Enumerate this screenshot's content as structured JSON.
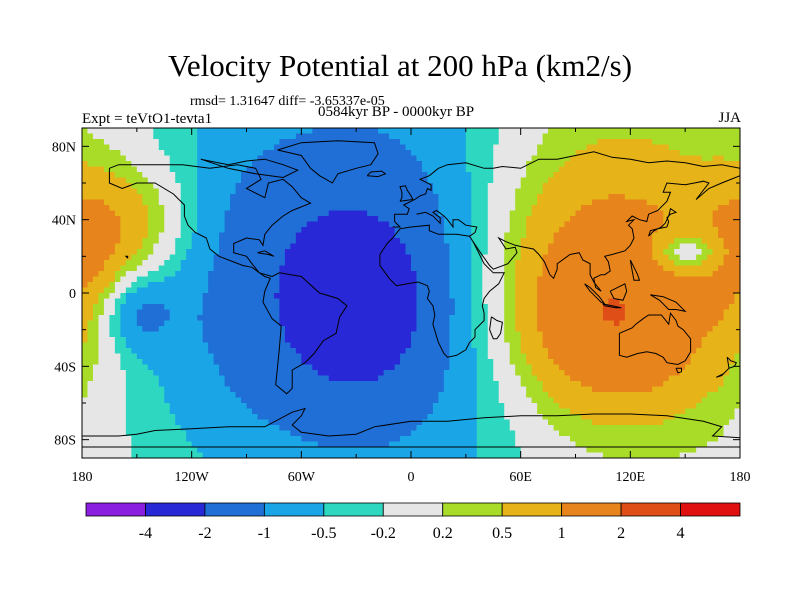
{
  "title": "Velocity Potential at 200 hPa (km2/s)",
  "stats": "rmsd= 1.31647 diff= -3.65337e-05",
  "experiment": "Expt = teVtO1-tevta1",
  "period": "0584kyr BP - 0000kyr BP",
  "season": "JJA",
  "lat_labels": [
    "80N",
    "40N",
    "0",
    "40S",
    "80S"
  ],
  "lat_values": [
    80,
    40,
    0,
    -40,
    -80
  ],
  "lon_labels": [
    "180",
    "120W",
    "60W",
    "0",
    "60E",
    "120E",
    "180"
  ],
  "lon_values": [
    -180,
    -120,
    -60,
    0,
    60,
    120,
    180
  ],
  "colorbar": {
    "labels": [
      "-4",
      "-2",
      "-1",
      "-0.5",
      "-0.2",
      "0.2",
      "0.5",
      "1",
      "2",
      "4"
    ],
    "colors": [
      "#8a1fe0",
      "#2828d6",
      "#1f6fd6",
      "#1aa6e6",
      "#2ed8c0",
      "#e6e6e6",
      "#a8dc28",
      "#e6b418",
      "#e8841c",
      "#e04e18",
      "#e01010"
    ]
  },
  "field_blobs": [
    {
      "lon": -10,
      "lat": 5,
      "sx": 90,
      "sy": 75,
      "amp": -2.2
    },
    {
      "lon": -30,
      "lat": -5,
      "sx": 25,
      "sy": 30,
      "amp": -1.6
    },
    {
      "lon": -150,
      "lat": -10,
      "sx": 14,
      "sy": 14,
      "amp": -0.9
    },
    {
      "lon": 90,
      "lat": 10,
      "sx": 60,
      "sy": 60,
      "amp": 2.3
    },
    {
      "lon": 110,
      "lat": -20,
      "sx": 35,
      "sy": 30,
      "amp": 0.9
    },
    {
      "lon": 150,
      "lat": 22,
      "sx": 14,
      "sy": 8,
      "amp": -1.1
    },
    {
      "lon": -150,
      "lat": 38,
      "sx": 25,
      "sy": 25,
      "amp": 0.9
    },
    {
      "lon": -175,
      "lat": 20,
      "sx": 15,
      "sy": 30,
      "amp": 0.6
    }
  ],
  "coastlines": [
    [
      [
        -165,
        68
      ],
      [
        -160,
        70
      ],
      [
        -140,
        70
      ],
      [
        -125,
        70
      ],
      [
        -110,
        68
      ],
      [
        -95,
        70
      ],
      [
        -85,
        68
      ],
      [
        -82,
        62
      ],
      [
        -90,
        57
      ],
      [
        -80,
        52
      ],
      [
        -78,
        60
      ],
      [
        -70,
        62
      ],
      [
        -65,
        58
      ],
      [
        -60,
        52
      ],
      [
        -55,
        49
      ],
      [
        -65,
        45
      ],
      [
        -70,
        42
      ],
      [
        -76,
        37
      ],
      [
        -80,
        32
      ],
      [
        -81,
        26
      ],
      [
        -83,
        29
      ],
      [
        -90,
        30
      ],
      [
        -97,
        27
      ],
      [
        -97,
        22
      ],
      [
        -90,
        20
      ],
      [
        -87,
        16
      ],
      [
        -83,
        11
      ],
      [
        -80,
        9
      ],
      [
        -77,
        8
      ],
      [
        -80,
        1
      ],
      [
        -81,
        -5
      ],
      [
        -76,
        -14
      ],
      [
        -71,
        -18
      ],
      [
        -72,
        -30
      ],
      [
        -73,
        -40
      ],
      [
        -74,
        -50
      ],
      [
        -68,
        -55
      ],
      [
        -65,
        -52
      ],
      [
        -65,
        -42
      ],
      [
        -58,
        -38
      ],
      [
        -53,
        -33
      ],
      [
        -48,
        -26
      ],
      [
        -41,
        -22
      ],
      [
        -39,
        -13
      ],
      [
        -35,
        -7
      ],
      [
        -40,
        -3
      ],
      [
        -50,
        0
      ],
      [
        -60,
        9
      ],
      [
        -72,
        11
      ],
      [
        -76,
        9
      ],
      [
        -83,
        11
      ],
      [
        -87,
        14
      ],
      [
        -92,
        15
      ],
      [
        -105,
        20
      ],
      [
        -110,
        24
      ],
      [
        -112,
        30
      ],
      [
        -118,
        33
      ],
      [
        -122,
        37
      ],
      [
        -124,
        42
      ],
      [
        -124,
        48
      ],
      [
        -130,
        54
      ],
      [
        -140,
        60
      ],
      [
        -150,
        60
      ],
      [
        -158,
        57
      ],
      [
        -165,
        60
      ],
      [
        -165,
        68
      ]
    ],
    [
      [
        -10,
        36
      ],
      [
        -6,
        36
      ],
      [
        -9,
        39
      ],
      [
        -9,
        43
      ],
      [
        -2,
        43
      ],
      [
        -1,
        46
      ],
      [
        -4,
        48
      ],
      [
        2,
        51
      ],
      [
        5,
        53
      ],
      [
        8,
        54
      ],
      [
        9,
        57
      ],
      [
        11,
        56
      ],
      [
        11,
        59
      ],
      [
        5,
        62
      ],
      [
        10,
        64
      ],
      [
        15,
        68
      ],
      [
        20,
        70
      ],
      [
        30,
        71
      ],
      [
        40,
        68
      ],
      [
        45,
        68
      ],
      [
        50,
        69
      ],
      [
        60,
        68
      ],
      [
        70,
        73
      ],
      [
        80,
        73
      ],
      [
        90,
        75
      ],
      [
        100,
        77
      ],
      [
        110,
        74
      ],
      [
        120,
        73
      ],
      [
        130,
        71
      ],
      [
        140,
        72
      ],
      [
        150,
        71
      ],
      [
        160,
        69
      ],
      [
        170,
        70
      ],
      [
        180,
        68
      ]
    ],
    [
      [
        -17,
        21
      ],
      [
        -17,
        15
      ],
      [
        -12,
        8
      ],
      [
        -8,
        4
      ],
      [
        -2,
        5
      ],
      [
        4,
        6
      ],
      [
        9,
        4
      ],
      [
        10,
        1
      ],
      [
        9,
        -3
      ],
      [
        12,
        -7
      ],
      [
        13,
        -12
      ],
      [
        12,
        -17
      ],
      [
        15,
        -27
      ],
      [
        18,
        -33
      ],
      [
        20,
        -35
      ],
      [
        25,
        -34
      ],
      [
        30,
        -31
      ],
      [
        32,
        -27
      ],
      [
        35,
        -24
      ],
      [
        35,
        -20
      ],
      [
        40,
        -15
      ],
      [
        40,
        -11
      ],
      [
        39,
        -7
      ],
      [
        40,
        -3
      ],
      [
        43,
        1
      ],
      [
        48,
        5
      ],
      [
        51,
        11
      ],
      [
        45,
        11
      ],
      [
        43,
        13
      ],
      [
        40,
        16
      ],
      [
        37,
        22
      ],
      [
        34,
        28
      ],
      [
        32,
        31
      ],
      [
        25,
        32
      ],
      [
        20,
        32
      ],
      [
        15,
        32
      ],
      [
        10,
        34
      ],
      [
        10,
        37
      ],
      [
        0,
        36
      ],
      [
        -6,
        35
      ],
      [
        -10,
        30
      ],
      [
        -13,
        27
      ],
      [
        -17,
        21
      ]
    ],
    [
      [
        32,
        31
      ],
      [
        35,
        33
      ],
      [
        36,
        36
      ],
      [
        30,
        37
      ],
      [
        26,
        40
      ],
      [
        23,
        40
      ],
      [
        23,
        36
      ],
      [
        20,
        40
      ],
      [
        18,
        42
      ],
      [
        14,
        45
      ],
      [
        12,
        44
      ],
      [
        16,
        41
      ],
      [
        16,
        38
      ],
      [
        12,
        42
      ],
      [
        8,
        44
      ],
      [
        3,
        43
      ]
    ],
    [
      [
        34,
        28
      ],
      [
        38,
        22
      ],
      [
        43,
        15
      ],
      [
        45,
        13
      ],
      [
        53,
        16
      ],
      [
        58,
        22
      ],
      [
        57,
        25
      ],
      [
        52,
        24
      ],
      [
        50,
        27
      ],
      [
        48,
        30
      ],
      [
        52,
        28
      ],
      [
        57,
        26
      ],
      [
        62,
        25
      ],
      [
        67,
        24
      ],
      [
        70,
        21
      ],
      [
        73,
        17
      ],
      [
        76,
        10
      ],
      [
        78,
        8
      ],
      [
        80,
        13
      ],
      [
        80,
        16
      ],
      [
        87,
        21
      ],
      [
        92,
        22
      ],
      [
        94,
        18
      ],
      [
        98,
        16
      ],
      [
        98,
        10
      ],
      [
        100,
        6
      ],
      [
        104,
        1
      ],
      [
        101,
        3
      ],
      [
        100,
        8
      ],
      [
        104,
        10
      ],
      [
        106,
        10
      ],
      [
        109,
        12
      ],
      [
        108,
        17
      ],
      [
        106,
        20
      ],
      [
        110,
        21
      ],
      [
        117,
        23
      ],
      [
        120,
        26
      ],
      [
        122,
        30
      ],
      [
        121,
        35
      ],
      [
        119,
        37
      ],
      [
        122,
        40
      ],
      [
        118,
        39
      ],
      [
        121,
        42
      ],
      [
        125,
        40
      ],
      [
        129,
        39
      ],
      [
        130,
        43
      ],
      [
        135,
        45
      ],
      [
        140,
        50
      ],
      [
        142,
        55
      ],
      [
        138,
        55
      ],
      [
        140,
        60
      ],
      [
        150,
        59
      ],
      [
        155,
        60
      ],
      [
        160,
        61
      ],
      [
        163,
        60
      ],
      [
        156,
        51
      ],
      [
        163,
        57
      ],
      [
        170,
        60
      ],
      [
        180,
        64
      ]
    ],
    [
      [
        -6,
        50
      ],
      [
        -5,
        52
      ],
      [
        -5,
        55
      ],
      [
        -6,
        58
      ],
      [
        -3,
        58.5
      ],
      [
        -2,
        56
      ],
      [
        0,
        53
      ],
      [
        1,
        51
      ],
      [
        -6,
        50
      ]
    ],
    [
      [
        130,
        31
      ],
      [
        131,
        34
      ],
      [
        135,
        35
      ],
      [
        140,
        36
      ],
      [
        141,
        39
      ],
      [
        140,
        41
      ],
      [
        142,
        43
      ],
      [
        145,
        44
      ],
      [
        142,
        46
      ],
      [
        141,
        42
      ],
      [
        139,
        38
      ],
      [
        137,
        36
      ],
      [
        133,
        34
      ],
      [
        130,
        31
      ]
    ],
    [
      [
        95,
        5
      ],
      [
        98,
        3
      ],
      [
        103,
        -2
      ],
      [
        106,
        -6
      ],
      [
        104,
        -5
      ],
      [
        101,
        -2
      ],
      [
        98,
        1
      ],
      [
        95,
        5
      ]
    ],
    [
      [
        105,
        -6
      ],
      [
        110,
        -7
      ],
      [
        115,
        -8
      ],
      [
        112,
        -8
      ],
      [
        106,
        -7
      ],
      [
        105,
        -6
      ]
    ],
    [
      [
        109,
        1
      ],
      [
        111,
        -3
      ],
      [
        116,
        -4
      ],
      [
        118,
        1
      ],
      [
        117,
        5
      ],
      [
        115,
        4
      ],
      [
        111,
        2
      ],
      [
        109,
        1
      ]
    ],
    [
      [
        131,
        -1
      ],
      [
        138,
        -2
      ],
      [
        145,
        -5
      ],
      [
        150,
        -10
      ],
      [
        145,
        -9
      ],
      [
        141,
        -9
      ],
      [
        136,
        -4
      ],
      [
        131,
        -1
      ]
    ],
    [
      [
        114,
        -22
      ],
      [
        114,
        -34
      ],
      [
        118,
        -35
      ],
      [
        124,
        -33
      ],
      [
        129,
        -32
      ],
      [
        134,
        -33
      ],
      [
        138,
        -35
      ],
      [
        140,
        -38
      ],
      [
        146,
        -39
      ],
      [
        150,
        -37
      ],
      [
        153,
        -32
      ],
      [
        153,
        -25
      ],
      [
        149,
        -20
      ],
      [
        146,
        -18
      ],
      [
        145,
        -15
      ],
      [
        142,
        -11
      ],
      [
        141,
        -17
      ],
      [
        137,
        -12
      ],
      [
        135,
        -12
      ],
      [
        130,
        -12
      ],
      [
        127,
        -14
      ],
      [
        123,
        -17
      ],
      [
        121,
        -19
      ],
      [
        114,
        -22
      ]
    ],
    [
      [
        145,
        -41
      ],
      [
        148,
        -41
      ],
      [
        148,
        -43
      ],
      [
        146,
        -43.5
      ],
      [
        145,
        -41
      ]
    ],
    [
      [
        173,
        -35
      ],
      [
        175,
        -37
      ],
      [
        178,
        -38
      ],
      [
        177,
        -40
      ],
      [
        174,
        -41
      ],
      [
        173,
        -35
      ]
    ],
    [
      [
        167,
        -46
      ],
      [
        170,
        -45
      ],
      [
        174,
        -41
      ],
      [
        171,
        -44
      ],
      [
        167,
        -46
      ]
    ],
    [
      [
        44,
        -13
      ],
      [
        47,
        -15
      ],
      [
        50,
        -16
      ],
      [
        49,
        -22
      ],
      [
        47,
        -25
      ],
      [
        45,
        -25
      ],
      [
        43,
        -20
      ],
      [
        44,
        -13
      ]
    ],
    [
      [
        120,
        18
      ],
      [
        122,
        14
      ],
      [
        124,
        10
      ],
      [
        125,
        7
      ],
      [
        122,
        7
      ],
      [
        121,
        12
      ],
      [
        120,
        18
      ]
    ],
    [
      [
        -73,
        78
      ],
      [
        -60,
        82
      ],
      [
        -40,
        83
      ],
      [
        -20,
        82
      ],
      [
        -18,
        76
      ],
      [
        -22,
        70
      ],
      [
        -30,
        68
      ],
      [
        -40,
        65
      ],
      [
        -43,
        60
      ],
      [
        -50,
        64
      ],
      [
        -55,
        68
      ],
      [
        -60,
        75
      ],
      [
        -73,
        78
      ]
    ],
    [
      [
        -24,
        64
      ],
      [
        -22,
        66
      ],
      [
        -16,
        66.5
      ],
      [
        -14,
        65
      ],
      [
        -18,
        63.5
      ],
      [
        -24,
        64
      ]
    ],
    [
      [
        -115,
        73
      ],
      [
        -100,
        70
      ],
      [
        -90,
        72
      ],
      [
        -80,
        73
      ],
      [
        -70,
        70
      ],
      [
        -62,
        67
      ],
      [
        -70,
        63
      ],
      [
        -85,
        65
      ],
      [
        -100,
        68
      ],
      [
        -115,
        73
      ]
    ],
    [
      [
        -80,
        23
      ],
      [
        -75,
        20
      ],
      [
        -78,
        21
      ],
      [
        -84,
        22
      ],
      [
        -80,
        23
      ]
    ],
    [
      [
        -155,
        19
      ],
      [
        -156,
        20
      ],
      [
        -155,
        20
      ],
      [
        -155,
        19
      ]
    ],
    [
      [
        -180,
        -78
      ],
      [
        -160,
        -78
      ],
      [
        -150,
        -77
      ],
      [
        -140,
        -75
      ],
      [
        -120,
        -74
      ],
      [
        -100,
        -73
      ],
      [
        -80,
        -73
      ],
      [
        -65,
        -65
      ],
      [
        -58,
        -63
      ],
      [
        -60,
        -67
      ],
      [
        -65,
        -72
      ],
      [
        -60,
        -76
      ],
      [
        -45,
        -78
      ],
      [
        -30,
        -77
      ],
      [
        -20,
        -73
      ],
      [
        0,
        -70
      ],
      [
        20,
        -70
      ],
      [
        40,
        -68
      ],
      [
        60,
        -67
      ],
      [
        80,
        -67
      ],
      [
        100,
        -66
      ],
      [
        120,
        -66
      ],
      [
        140,
        -67
      ],
      [
        160,
        -70
      ],
      [
        170,
        -73
      ],
      [
        165,
        -78
      ],
      [
        180,
        -79
      ]
    ],
    [
      [
        -180,
        -84
      ],
      [
        180,
        -84
      ]
    ]
  ]
}
